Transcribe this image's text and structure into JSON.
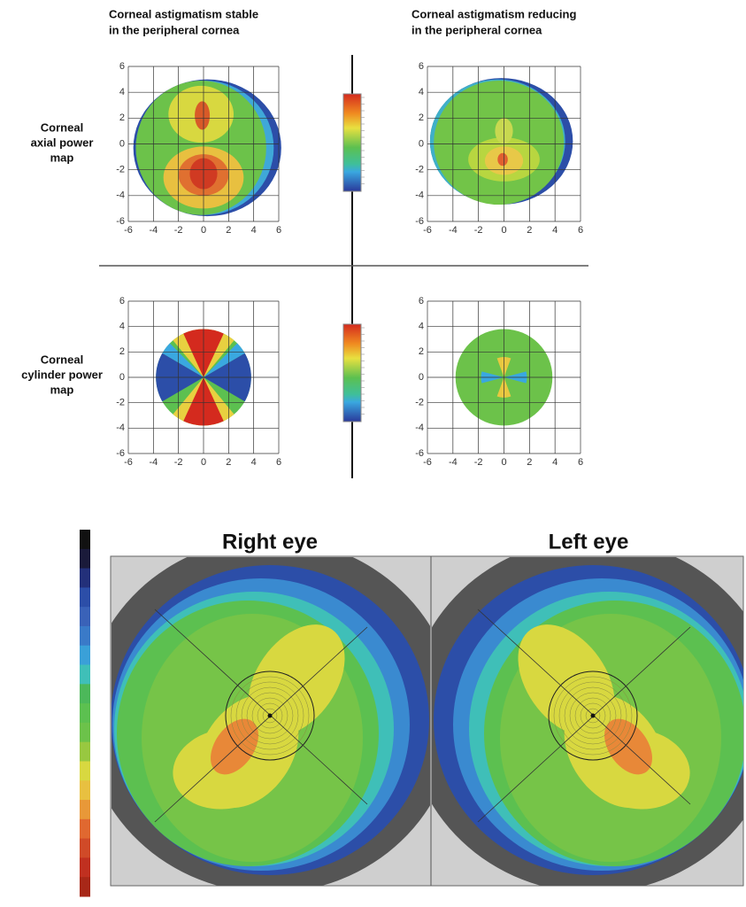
{
  "columns": [
    {
      "lines": [
        "Corneal astigmatism stable",
        "in the peripheral cornea"
      ]
    },
    {
      "lines": [
        "Corneal astigmatism reducing",
        "in the peripheral cornea"
      ]
    }
  ],
  "rows": [
    {
      "lines": [
        "Corneal",
        "axial power",
        "map"
      ]
    },
    {
      "lines": [
        "Corneal",
        "cylinder power",
        "map"
      ]
    }
  ],
  "axis_ticks": [
    -6,
    -4,
    -2,
    0,
    2,
    4,
    6
  ],
  "eyes": [
    "Right eye",
    "Left eye"
  ]
}
